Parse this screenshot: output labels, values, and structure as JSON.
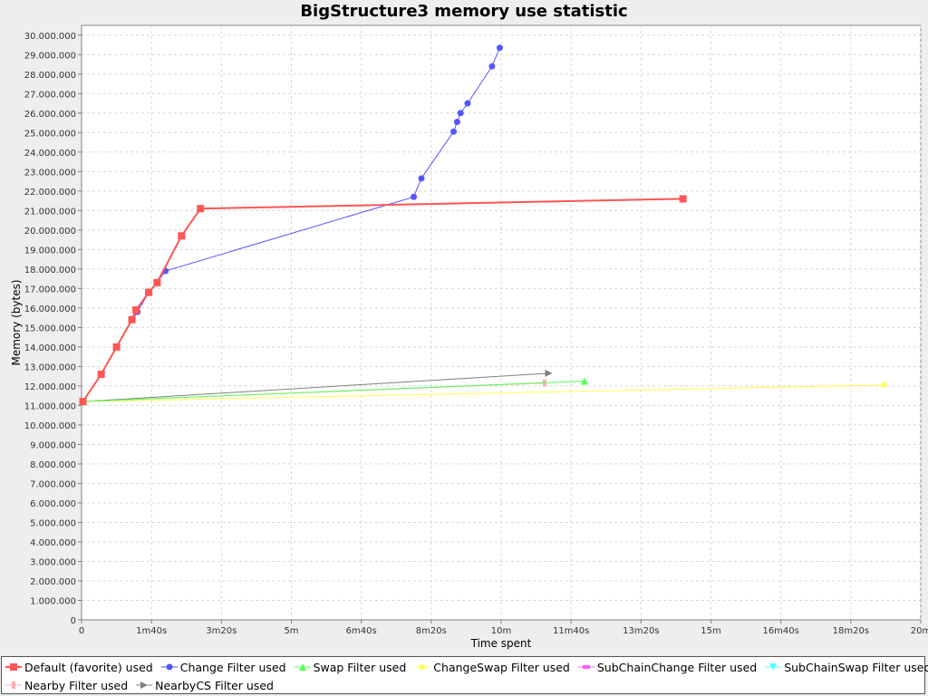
{
  "chart_data": {
    "type": "line",
    "title": "BigStructure3 memory use statistic",
    "xlabel": "Time spent",
    "ylabel": "Memory (bytes)",
    "xlim": [
      0,
      1200
    ],
    "ylim": [
      0,
      30500000
    ],
    "grid": true,
    "legend_position": "bottom",
    "x_ticks": [
      {
        "value": 0,
        "label": "0"
      },
      {
        "value": 100,
        "label": "1m40s"
      },
      {
        "value": 200,
        "label": "3m20s"
      },
      {
        "value": 300,
        "label": "5m"
      },
      {
        "value": 400,
        "label": "6m40s"
      },
      {
        "value": 500,
        "label": "8m20s"
      },
      {
        "value": 600,
        "label": "10m"
      },
      {
        "value": 700,
        "label": "11m40s"
      },
      {
        "value": 800,
        "label": "13m20s"
      },
      {
        "value": 900,
        "label": "15m"
      },
      {
        "value": 1000,
        "label": "16m40s"
      },
      {
        "value": 1100,
        "label": "18m20s"
      },
      {
        "value": 1200,
        "label": "20m"
      }
    ],
    "y_ticks": [
      {
        "value": 0,
        "label": "0"
      },
      {
        "value": 1000000,
        "label": "1.000.000"
      },
      {
        "value": 2000000,
        "label": "2.000.000"
      },
      {
        "value": 3000000,
        "label": "3.000.000"
      },
      {
        "value": 4000000,
        "label": "4.000.000"
      },
      {
        "value": 5000000,
        "label": "5.000.000"
      },
      {
        "value": 6000000,
        "label": "6.000.000"
      },
      {
        "value": 7000000,
        "label": "7.000.000"
      },
      {
        "value": 8000000,
        "label": "8.000.000"
      },
      {
        "value": 9000000,
        "label": "9.000.000"
      },
      {
        "value": 10000000,
        "label": "10.000.000"
      },
      {
        "value": 11000000,
        "label": "11.000.000"
      },
      {
        "value": 12000000,
        "label": "12.000.000"
      },
      {
        "value": 13000000,
        "label": "13.000.000"
      },
      {
        "value": 14000000,
        "label": "14.000.000"
      },
      {
        "value": 15000000,
        "label": "15.000.000"
      },
      {
        "value": 16000000,
        "label": "16.000.000"
      },
      {
        "value": 17000000,
        "label": "17.000.000"
      },
      {
        "value": 18000000,
        "label": "18.000.000"
      },
      {
        "value": 19000000,
        "label": "19.000.000"
      },
      {
        "value": 20000000,
        "label": "20.000.000"
      },
      {
        "value": 21000000,
        "label": "21.000.000"
      },
      {
        "value": 22000000,
        "label": "22.000.000"
      },
      {
        "value": 23000000,
        "label": "23.000.000"
      },
      {
        "value": 24000000,
        "label": "24.000.000"
      },
      {
        "value": 25000000,
        "label": "25.000.000"
      },
      {
        "value": 26000000,
        "label": "26.000.000"
      },
      {
        "value": 27000000,
        "label": "27.000.000"
      },
      {
        "value": 28000000,
        "label": "28.000.000"
      },
      {
        "value": 29000000,
        "label": "29.000.000"
      },
      {
        "value": 30000000,
        "label": "30.000.000"
      }
    ],
    "series": [
      {
        "name": "Default (favorite) used",
        "color": "#ff5555",
        "marker": "square",
        "line_width": 2,
        "points": [
          [
            2,
            11200000
          ],
          [
            28,
            12600000
          ],
          [
            50,
            14000000
          ],
          [
            72,
            15400000
          ],
          [
            78,
            15900000
          ],
          [
            96,
            16800000
          ],
          [
            108,
            17300000
          ],
          [
            143,
            19700000
          ],
          [
            170,
            21100000
          ],
          [
            860,
            21600000
          ]
        ]
      },
      {
        "name": "Change Filter used",
        "color": "#5555ff",
        "marker": "circle",
        "line_width": 1,
        "points": [
          [
            2,
            11200000
          ],
          [
            28,
            12600000
          ],
          [
            50,
            14000000
          ],
          [
            72,
            15400000
          ],
          [
            80,
            15800000
          ],
          [
            96,
            16800000
          ],
          [
            108,
            17300000
          ],
          [
            120,
            17900000
          ],
          [
            475,
            21700000
          ],
          [
            486,
            22650000
          ],
          [
            532,
            25050000
          ],
          [
            537,
            25550000
          ],
          [
            542,
            26000000
          ],
          [
            552,
            26500000
          ],
          [
            587,
            28400000
          ],
          [
            598,
            29350000
          ]
        ]
      },
      {
        "name": "Swap Filter used",
        "color": "#55ff55",
        "marker": "triangle-up",
        "line_width": 1,
        "points": [
          [
            2,
            11200000
          ],
          [
            719,
            12250000
          ]
        ]
      },
      {
        "name": "ChangeSwap Filter used",
        "color": "#ffff55",
        "marker": "diamond",
        "line_width": 1,
        "points": [
          [
            2,
            11200000
          ],
          [
            1147,
            12050000
          ]
        ]
      },
      {
        "name": "SubChainChange Filter used",
        "color": "#ff55ff",
        "marker": "rect-h",
        "line_width": 1,
        "points": []
      },
      {
        "name": "SubChainSwap Filter used",
        "color": "#55ffff",
        "marker": "triangle-down",
        "line_width": 1,
        "points": []
      },
      {
        "name": "Nearby Filter used",
        "color": "#ffafaf",
        "marker": "rect-v",
        "line_width": 1,
        "points": [
          [
            2,
            11200000
          ],
          [
            662,
            12150000
          ]
        ]
      },
      {
        "name": "NearbyCS Filter used",
        "color": "#808080",
        "marker": "triangle-right",
        "line_width": 1,
        "points": [
          [
            2,
            11200000
          ],
          [
            668,
            12650000
          ]
        ]
      }
    ]
  }
}
